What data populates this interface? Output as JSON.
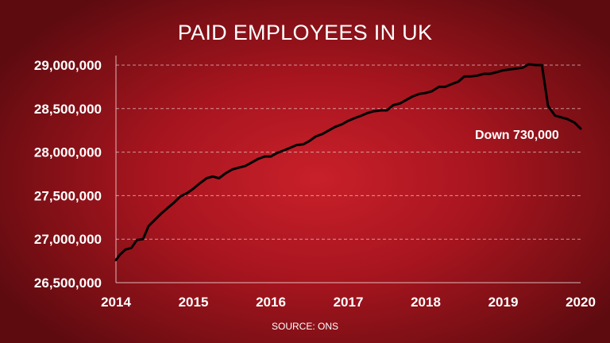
{
  "chart_data": {
    "type": "line",
    "title": "PAID EMPLOYEES IN UK",
    "source": "SOURCE: ONS",
    "xlabel": "",
    "ylabel": "",
    "xlim": [
      2014,
      2020
    ],
    "ylim": [
      26500000,
      29000000
    ],
    "x_ticks": [
      "2014",
      "2015",
      "2016",
      "2017",
      "2018",
      "2019",
      "2020"
    ],
    "y_ticks": [
      "26,500,000",
      "27,000,000",
      "27,500,000",
      "28,000,000",
      "28,500,000",
      "29,000,000"
    ],
    "grid": "horizontal-dashed",
    "annotation": {
      "text": "Down 730,000",
      "x": 2019.8,
      "y": 28270000
    },
    "series": [
      {
        "name": "",
        "color": "#000000",
        "x": [
          2014.0,
          2014.05,
          2014.12,
          2014.2,
          2014.27,
          2014.35,
          2014.42,
          2014.5,
          2014.58,
          2014.67,
          2014.75,
          2014.83,
          2014.92,
          2015.0,
          2015.08,
          2015.17,
          2015.25,
          2015.33,
          2015.42,
          2015.5,
          2015.58,
          2015.67,
          2015.75,
          2015.83,
          2015.92,
          2016.0,
          2016.08,
          2016.17,
          2016.25,
          2016.33,
          2016.42,
          2016.5,
          2016.58,
          2016.67,
          2016.75,
          2016.83,
          2016.92,
          2017.0,
          2017.08,
          2017.17,
          2017.25,
          2017.33,
          2017.42,
          2017.5,
          2017.58,
          2017.67,
          2017.75,
          2017.83,
          2017.92,
          2018.0,
          2018.08,
          2018.17,
          2018.25,
          2018.33,
          2018.42,
          2018.5,
          2018.58,
          2018.67,
          2018.75,
          2018.83,
          2018.92,
          2019.0,
          2019.08,
          2019.17,
          2019.25,
          2019.33,
          2019.42,
          2019.5,
          2019.58,
          2019.67,
          2019.75,
          2019.83,
          2019.92,
          2020.0
        ],
        "y": [
          26760000,
          26820000,
          26880000,
          26900000,
          26990000,
          27000000,
          27150000,
          27220000,
          27290000,
          27360000,
          27420000,
          27490000,
          27530000,
          27580000,
          27640000,
          27700000,
          27720000,
          27700000,
          27760000,
          27800000,
          27820000,
          27840000,
          27880000,
          27920000,
          27950000,
          27950000,
          27990000,
          28020000,
          28050000,
          28080000,
          28090000,
          28130000,
          28180000,
          28210000,
          28250000,
          28290000,
          28320000,
          28360000,
          28390000,
          28420000,
          28450000,
          28470000,
          28480000,
          28480000,
          28540000,
          28560000,
          28600000,
          28640000,
          28670000,
          28680000,
          28700000,
          28750000,
          28750000,
          28780000,
          28810000,
          28870000,
          28870000,
          28880000,
          28900000,
          28900000,
          28920000,
          28940000,
          28950000,
          28960000,
          28970000,
          29010000,
          29000000,
          29000000,
          28530000,
          28420000,
          28400000,
          28380000,
          28340000,
          28270000
        ]
      }
    ]
  }
}
